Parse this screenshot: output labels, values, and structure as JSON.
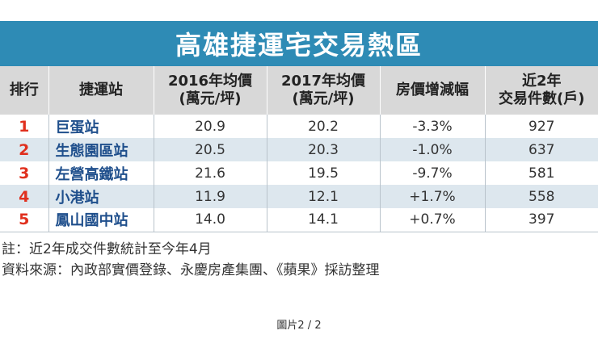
{
  "title": "高雄捷運宅交易熱區",
  "headers": [
    "排行",
    "捷運站",
    "2016年均價\n(萬元/坪)",
    "2017年均價\n(萬元/坪)",
    "房價增減幅",
    "近2年\n交易件數(戶)"
  ],
  "rows": [
    {
      "rank": "1",
      "station": "巨蛋站",
      "price_2016": "20.9",
      "price_2017": "20.2",
      "change": "-3.3%",
      "transactions": "927"
    },
    {
      "rank": "2",
      "station": "生態園區站",
      "price_2016": "20.5",
      "price_2017": "20.3",
      "change": "-1.0%",
      "transactions": "637"
    },
    {
      "rank": "3",
      "station": "左營高鐵站",
      "price_2016": "21.6",
      "price_2017": "19.5",
      "change": "-9.7%",
      "transactions": "581"
    },
    {
      "rank": "4",
      "station": "小港站",
      "price_2016": "11.9",
      "price_2017": "12.1",
      "change": "+1.7%",
      "transactions": "558"
    },
    {
      "rank": "5",
      "station": "鳳山國中站",
      "price_2016": "14.0",
      "price_2017": "14.1",
      "change": "+0.7%",
      "transactions": "397"
    }
  ],
  "notes": {
    "note": "註：近2年成交件數統計至今年4月",
    "source": "資料來源：內政部實價登錄、永慶房產集團、《蘋果》採訪整理"
  },
  "caption": "圖片2 / 2",
  "colors": {
    "title_bg": "#2e8bb5",
    "header_bg": "#d8d8d8",
    "stripe_bg": "#dde7ee",
    "rank_red": "#e0301e",
    "station_blue": "#1f4f8c"
  }
}
